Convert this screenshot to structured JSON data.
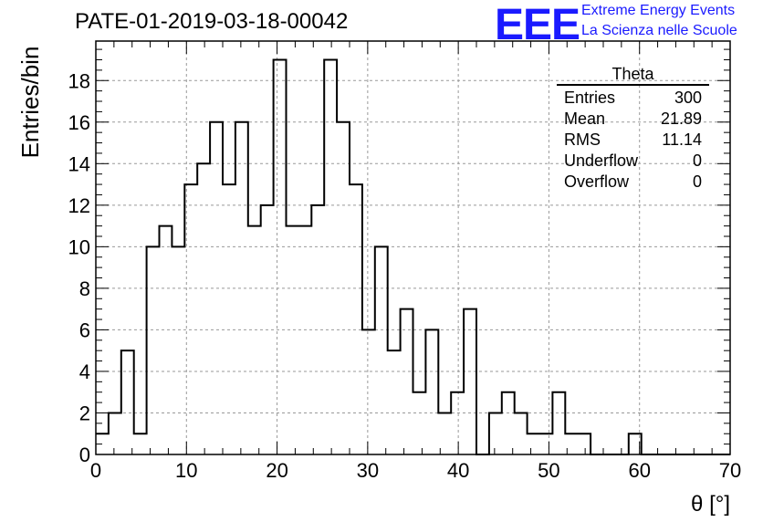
{
  "title": "PATE-01-2019-03-18-00042",
  "logo": {
    "mark": "EEE",
    "line1": "Extreme Energy Events",
    "line2": "La Scienza nelle Scuole",
    "color": "#1a1aff"
  },
  "stats": {
    "name": "Theta",
    "rows": [
      {
        "label": "Entries",
        "value": "300"
      },
      {
        "label": "Mean",
        "value": "21.89"
      },
      {
        "label": "RMS",
        "value": "11.14"
      },
      {
        "label": "Underflow",
        "value": "0"
      },
      {
        "label": "Overflow",
        "value": "0"
      }
    ]
  },
  "chart_data": {
    "type": "bar",
    "histogram": true,
    "xlabel": "θ [°]",
    "ylabel": "Entries/bin",
    "xlim": [
      0,
      70
    ],
    "ylim": [
      0,
      19.9
    ],
    "grid": true,
    "bin_width": 1.4,
    "x_ticks": [
      0,
      10,
      20,
      30,
      40,
      50,
      60,
      70
    ],
    "y_ticks": [
      0,
      2,
      4,
      6,
      8,
      10,
      12,
      14,
      16,
      18
    ],
    "values": [
      1,
      2,
      5,
      1,
      10,
      11,
      10,
      13,
      14,
      16,
      13,
      16,
      11,
      12,
      19,
      11,
      11,
      12,
      19,
      16,
      13,
      6,
      10,
      5,
      7,
      3,
      6,
      2,
      3,
      7,
      0,
      2,
      3,
      2,
      1,
      1,
      3,
      1,
      1,
      0,
      0,
      0,
      1,
      0,
      0,
      0,
      0,
      0,
      0,
      0
    ],
    "line_color": "#000000"
  }
}
